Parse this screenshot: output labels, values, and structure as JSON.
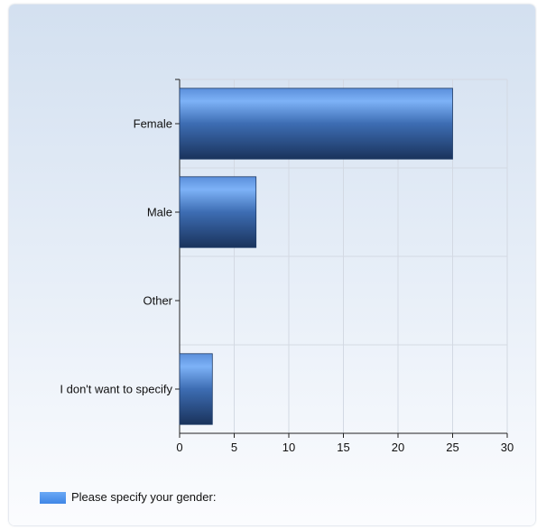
{
  "chart_data": {
    "type": "bar",
    "orientation": "horizontal",
    "categories": [
      "Female",
      "Male",
      "Other",
      "I don't want to specify"
    ],
    "series": [
      {
        "name": "Please specify your gender:",
        "values": [
          25,
          7,
          0,
          3
        ]
      }
    ],
    "xlim": [
      0,
      30
    ],
    "x_ticks": [
      "0",
      "5",
      "10",
      "15",
      "20",
      "25",
      "30"
    ],
    "grid": true,
    "legend_placement": "bottom-left",
    "colors": {
      "bar_top": "#6ea8f5",
      "bar_mid": "#3d6fb8",
      "bar_bottom": "#1b355f",
      "grid": "#d3d9e3",
      "axis": "#222222"
    }
  }
}
